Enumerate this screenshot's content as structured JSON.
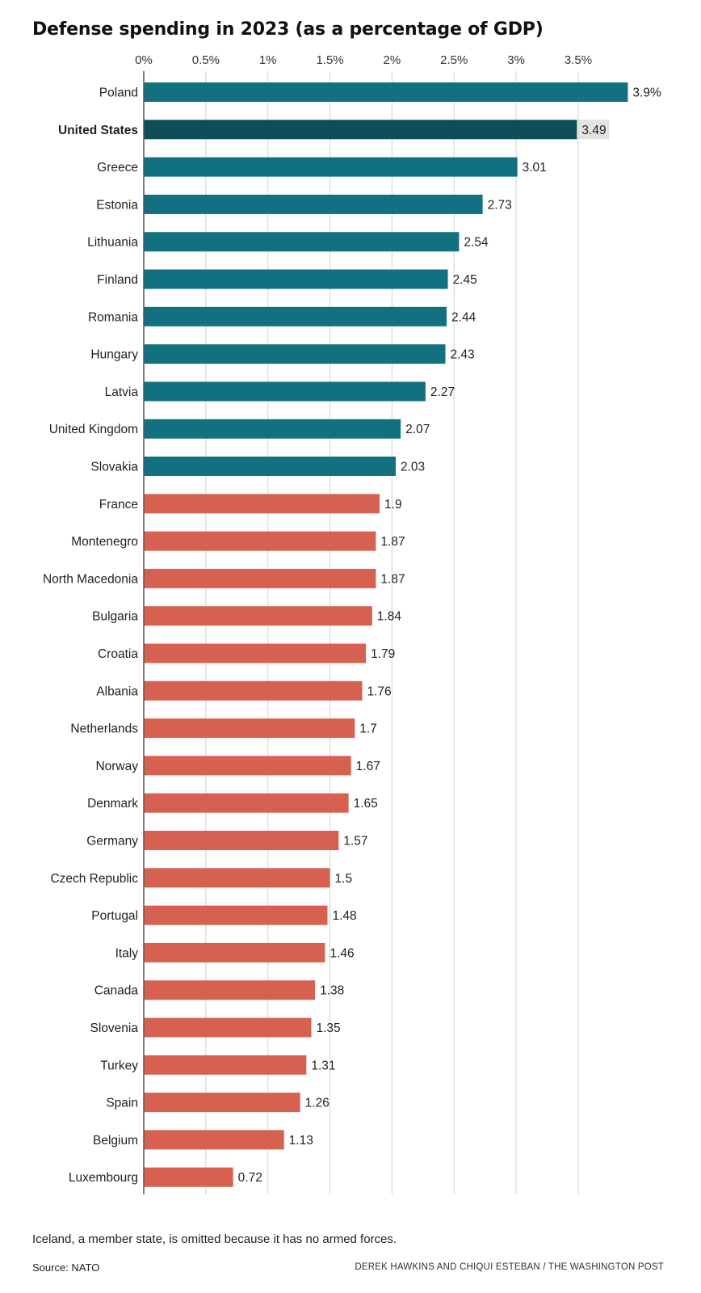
{
  "title": "Defense spending in 2023 (as a percentage of GDP)",
  "note": "Iceland, a member state, is omitted because it has no armed forces.",
  "source": "Source: NATO",
  "credit": "DEREK HAWKINS AND CHIQUI ESTEBAN / THE WASHINGTON POST",
  "colors": {
    "above_target": "#127180",
    "highlight": "#0e4e57",
    "below_target": "#d66150",
    "highlight_label_bg": "#e2e2e2",
    "grid": "#d9d9d9",
    "axis": "#555555"
  },
  "chart_data": {
    "type": "bar",
    "orientation": "horizontal",
    "title": "Defense spending in 2023 (as a percentage of GDP)",
    "xlim": [
      0,
      3.9
    ],
    "xticks": [
      0,
      0.5,
      1,
      1.5,
      2,
      2.5,
      3,
      3.5
    ],
    "xtick_labels": [
      "0%",
      "0.5%",
      "1%",
      "1.5%",
      "2%",
      "2.5%",
      "3%",
      "3.5%"
    ],
    "grid": true,
    "categories": [
      "Poland",
      "United States",
      "Greece",
      "Estonia",
      "Lithuania",
      "Finland",
      "Romania",
      "Hungary",
      "Latvia",
      "United Kingdom",
      "Slovakia",
      "France",
      "Montenegro",
      "North Macedonia",
      "Bulgaria",
      "Croatia",
      "Albania",
      "Netherlands",
      "Norway",
      "Denmark",
      "Germany",
      "Czech Republic",
      "Portugal",
      "Italy",
      "Canada",
      "Slovenia",
      "Turkey",
      "Spain",
      "Belgium",
      "Luxembourg"
    ],
    "values": [
      3.9,
      3.49,
      3.01,
      2.73,
      2.54,
      2.45,
      2.44,
      2.43,
      2.27,
      2.07,
      2.03,
      1.9,
      1.87,
      1.87,
      1.84,
      1.79,
      1.76,
      1.7,
      1.67,
      1.65,
      1.57,
      1.5,
      1.48,
      1.46,
      1.38,
      1.35,
      1.31,
      1.26,
      1.13,
      0.72
    ],
    "value_labels": [
      "3.9%",
      "3.49",
      "3.01",
      "2.73",
      "2.54",
      "2.45",
      "2.44",
      "2.43",
      "2.27",
      "2.07",
      "2.03",
      "1.9",
      "1.87",
      "1.87",
      "1.84",
      "1.79",
      "1.76",
      "1.7",
      "1.67",
      "1.65",
      "1.57",
      "1.5",
      "1.48",
      "1.46",
      "1.38",
      "1.35",
      "1.31",
      "1.26",
      "1.13",
      "0.72"
    ],
    "highlight": "United States",
    "threshold": 2
  }
}
